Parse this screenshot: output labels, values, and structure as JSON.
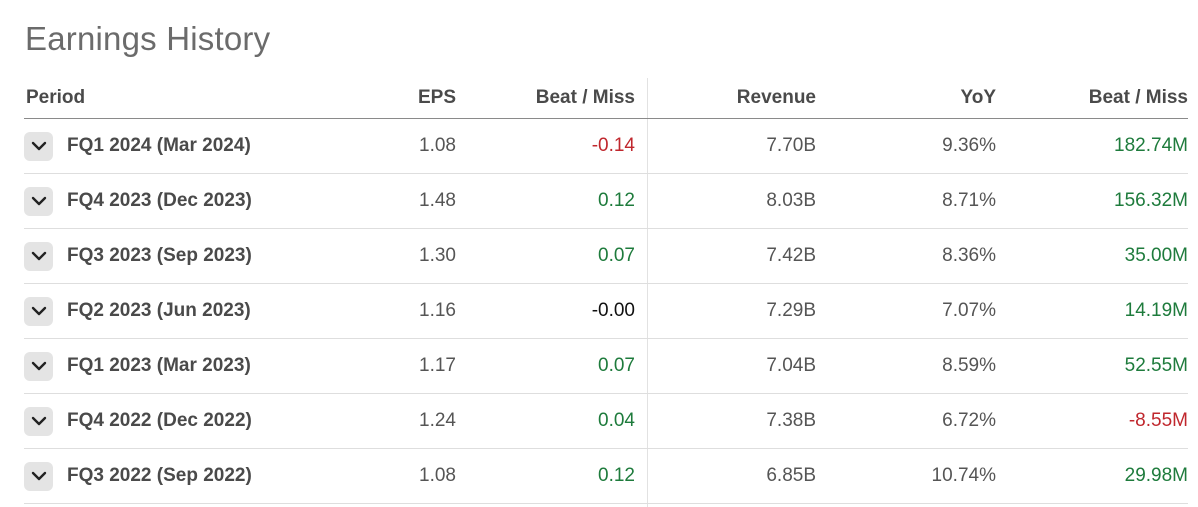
{
  "page": {
    "title": "Earnings History"
  },
  "colors": {
    "positive": "#1e7b3c",
    "negative": "#c0272d",
    "neutral": "#111111"
  },
  "table": {
    "headers": {
      "period": "Period",
      "eps": "EPS",
      "eps_beat_miss": "Beat / Miss",
      "revenue": "Revenue",
      "yoy": "YoY",
      "revenue_beat_miss": "Beat / Miss"
    },
    "rows": [
      {
        "period": "FQ1 2024 (Mar 2024)",
        "eps": "1.08",
        "eps_beat_miss": "-0.14",
        "eps_bm_status": "negative",
        "revenue": "7.70B",
        "yoy": "9.36%",
        "revenue_beat_miss": "182.74M",
        "rev_bm_status": "positive",
        "expand_icon": "chevron-down-icon"
      },
      {
        "period": "FQ4 2023 (Dec 2023)",
        "eps": "1.48",
        "eps_beat_miss": "0.12",
        "eps_bm_status": "positive",
        "revenue": "8.03B",
        "yoy": "8.71%",
        "revenue_beat_miss": "156.32M",
        "rev_bm_status": "positive",
        "expand_icon": "chevron-down-icon"
      },
      {
        "period": "FQ3 2023 (Sep 2023)",
        "eps": "1.30",
        "eps_beat_miss": "0.07",
        "eps_bm_status": "positive",
        "revenue": "7.42B",
        "yoy": "8.36%",
        "revenue_beat_miss": "35.00M",
        "rev_bm_status": "positive",
        "expand_icon": "chevron-down-icon"
      },
      {
        "period": "FQ2 2023 (Jun 2023)",
        "eps": "1.16",
        "eps_beat_miss": "-0.00",
        "eps_bm_status": "neutral",
        "revenue": "7.29B",
        "yoy": "7.07%",
        "revenue_beat_miss": "14.19M",
        "rev_bm_status": "positive",
        "expand_icon": "chevron-down-icon"
      },
      {
        "period": "FQ1 2023 (Mar 2023)",
        "eps": "1.17",
        "eps_beat_miss": "0.07",
        "eps_bm_status": "positive",
        "revenue": "7.04B",
        "yoy": "8.59%",
        "revenue_beat_miss": "52.55M",
        "rev_bm_status": "positive",
        "expand_icon": "chevron-down-icon"
      },
      {
        "period": "FQ4 2022 (Dec 2022)",
        "eps": "1.24",
        "eps_beat_miss": "0.04",
        "eps_bm_status": "positive",
        "revenue": "7.38B",
        "yoy": "6.72%",
        "revenue_beat_miss": "-8.55M",
        "rev_bm_status": "negative",
        "expand_icon": "chevron-down-icon"
      },
      {
        "period": "FQ3 2022 (Sep 2022)",
        "eps": "1.08",
        "eps_beat_miss": "0.12",
        "eps_bm_status": "positive",
        "revenue": "6.85B",
        "yoy": "10.74%",
        "revenue_beat_miss": "29.98M",
        "rev_bm_status": "positive",
        "expand_icon": "chevron-down-icon"
      }
    ]
  }
}
